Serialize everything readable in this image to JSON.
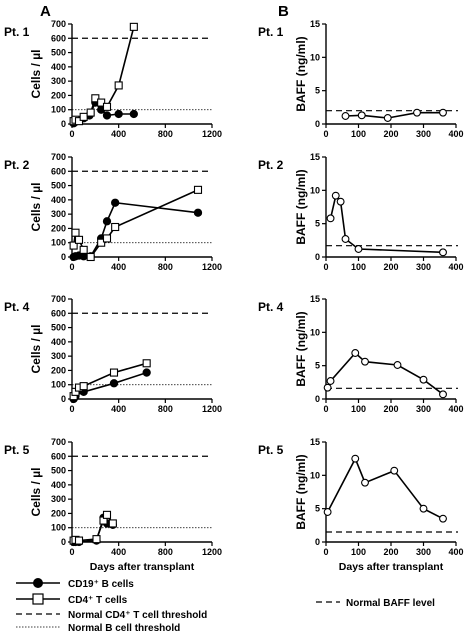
{
  "panel_letters": {
    "left": "A",
    "right": "B"
  },
  "patient_labels": [
    "Pt. 1",
    "Pt. 2",
    "Pt. 4",
    "Pt. 5"
  ],
  "left_ylabel": "Cells / µl",
  "right_ylabel": "BAFF (ng/ml)",
  "left_xlabel": "Days after transplant",
  "right_xlabel": "Days after transplant",
  "legend": {
    "b_cells": "CD19⁺ B cells",
    "t_cells": "CD4⁺ T cells",
    "cd4_threshold": "Normal CD4⁺ T cell threshold",
    "b_threshold": "Normal B cell threshold",
    "baff_level": "Normal BAFF level"
  },
  "chart_data": [
    {
      "type": "line",
      "panel": "A",
      "patient": "Pt. 1",
      "xlabel": "",
      "ylabel": "Cells / µl",
      "xlim": [
        0,
        1200
      ],
      "ylim": [
        0,
        700
      ],
      "xticks": [
        0,
        400,
        800,
        1200
      ],
      "yticks": [
        0,
        100,
        200,
        300,
        400,
        500,
        600,
        700
      ],
      "series": [
        {
          "name": "CD19⁺ B cells",
          "x": [
            14,
            30,
            60,
            100,
            150,
            200,
            250,
            300,
            400,
            530
          ],
          "y": [
            5,
            15,
            25,
            40,
            60,
            150,
            100,
            60,
            70,
            70
          ]
        },
        {
          "name": "CD4⁺ T cells",
          "x": [
            14,
            30,
            60,
            100,
            160,
            200,
            250,
            300,
            400,
            530
          ],
          "y": [
            20,
            30,
            20,
            50,
            80,
            180,
            150,
            120,
            270,
            680
          ]
        }
      ],
      "thresholds": [
        {
          "name": "Normal CD4⁺ T cell threshold",
          "y": 600
        },
        {
          "name": "Normal B cell threshold",
          "y": 100
        }
      ]
    },
    {
      "type": "line",
      "panel": "A",
      "patient": "Pt. 2",
      "xlabel": "",
      "ylabel": "Cells / µl",
      "xlim": [
        0,
        1200
      ],
      "ylim": [
        0,
        700
      ],
      "xticks": [
        0,
        400,
        800,
        1200
      ],
      "yticks": [
        0,
        100,
        200,
        300,
        400,
        500,
        600,
        700
      ],
      "series": [
        {
          "name": "CD19⁺ B cells",
          "x": [
            14,
            30,
            60,
            100,
            160,
            250,
            300,
            370,
            1080
          ],
          "y": [
            0,
            5,
            10,
            5,
            5,
            130,
            250,
            380,
            310
          ]
        },
        {
          "name": "CD4⁺ T cells",
          "x": [
            14,
            30,
            60,
            100,
            160,
            250,
            300,
            370,
            1080
          ],
          "y": [
            80,
            170,
            120,
            50,
            0,
            100,
            130,
            210,
            470
          ]
        }
      ],
      "thresholds": [
        {
          "name": "Normal CD4⁺ T cell threshold",
          "y": 600
        },
        {
          "name": "Normal B cell threshold",
          "y": 100
        }
      ]
    },
    {
      "type": "line",
      "panel": "A",
      "patient": "Pt. 4",
      "xlabel": "",
      "ylabel": "Cells / µl",
      "xlim": [
        0,
        1200
      ],
      "ylim": [
        0,
        700
      ],
      "xticks": [
        0,
        400,
        800,
        1200
      ],
      "yticks": [
        0,
        100,
        200,
        300,
        400,
        500,
        600,
        700
      ],
      "series": [
        {
          "name": "CD19⁺ B cells",
          "x": [
            14,
            30,
            60,
            100,
            360,
            640
          ],
          "y": [
            0,
            20,
            60,
            50,
            110,
            185
          ]
        },
        {
          "name": "CD4⁺ T cells",
          "x": [
            14,
            30,
            60,
            100,
            360,
            640
          ],
          "y": [
            20,
            50,
            80,
            90,
            185,
            250
          ]
        }
      ],
      "thresholds": [
        {
          "name": "Normal CD4⁺ T cell threshold",
          "y": 600
        },
        {
          "name": "Normal B cell threshold",
          "y": 100
        }
      ]
    },
    {
      "type": "line",
      "panel": "A",
      "patient": "Pt. 5",
      "xlabel": "Days after transplant",
      "ylabel": "Cells / µl",
      "xlim": [
        0,
        1200
      ],
      "ylim": [
        0,
        700
      ],
      "xticks": [
        0,
        400,
        800,
        1200
      ],
      "yticks": [
        0,
        100,
        200,
        300,
        400,
        500,
        600,
        700
      ],
      "series": [
        {
          "name": "CD19⁺ B cells",
          "x": [
            14,
            30,
            60,
            210,
            270,
            300,
            350
          ],
          "y": [
            0,
            0,
            0,
            10,
            170,
            130,
            120
          ]
        },
        {
          "name": "CD4⁺ T cells",
          "x": [
            14,
            30,
            60,
            210,
            270,
            300,
            350
          ],
          "y": [
            10,
            15,
            10,
            20,
            150,
            190,
            130
          ]
        }
      ],
      "thresholds": [
        {
          "name": "Normal CD4⁺ T cell threshold",
          "y": 600
        },
        {
          "name": "Normal B cell threshold",
          "y": 100
        }
      ]
    },
    {
      "type": "line",
      "panel": "B",
      "patient": "Pt. 1",
      "xlabel": "",
      "ylabel": "BAFF (ng/ml)",
      "xlim": [
        0,
        400
      ],
      "ylim": [
        0,
        15
      ],
      "xticks": [
        0,
        100,
        200,
        300,
        400
      ],
      "yticks": [
        0,
        5,
        10,
        15
      ],
      "series": [
        {
          "name": "BAFF",
          "x": [
            60,
            110,
            190,
            280,
            360
          ],
          "y": [
            1.2,
            1.3,
            0.9,
            1.7,
            1.7
          ]
        }
      ],
      "thresholds": [
        {
          "name": "Normal BAFF level",
          "y": 2.0
        }
      ]
    },
    {
      "type": "line",
      "panel": "B",
      "patient": "Pt. 2",
      "xlabel": "",
      "ylabel": "BAFF (ng/ml)",
      "xlim": [
        0,
        400
      ],
      "ylim": [
        0,
        15
      ],
      "xticks": [
        0,
        100,
        200,
        300,
        400
      ],
      "yticks": [
        0,
        5,
        10,
        15
      ],
      "series": [
        {
          "name": "BAFF",
          "x": [
            14,
            30,
            45,
            60,
            100,
            360
          ],
          "y": [
            5.8,
            9.2,
            8.3,
            2.7,
            1.2,
            0.7
          ]
        }
      ],
      "thresholds": [
        {
          "name": "Normal BAFF level",
          "y": 1.7
        }
      ]
    },
    {
      "type": "line",
      "panel": "B",
      "patient": "Pt. 4",
      "xlabel": "",
      "ylabel": "BAFF (ng/ml)",
      "xlim": [
        0,
        400
      ],
      "ylim": [
        0,
        15
      ],
      "xticks": [
        0,
        100,
        200,
        300,
        400
      ],
      "yticks": [
        0,
        5,
        10,
        15
      ],
      "series": [
        {
          "name": "BAFF",
          "x": [
            5,
            14,
            90,
            120,
            220,
            300,
            360
          ],
          "y": [
            1.7,
            2.7,
            6.9,
            5.6,
            5.1,
            2.9,
            0.7
          ]
        }
      ],
      "thresholds": [
        {
          "name": "Normal BAFF level",
          "y": 1.6
        }
      ]
    },
    {
      "type": "line",
      "panel": "B",
      "patient": "Pt. 5",
      "xlabel": "Days after transplant",
      "ylabel": "BAFF (ng/ml)",
      "xlim": [
        0,
        400
      ],
      "ylim": [
        0,
        15
      ],
      "xticks": [
        0,
        100,
        200,
        300,
        400
      ],
      "yticks": [
        0,
        5,
        10,
        15
      ],
      "series": [
        {
          "name": "BAFF",
          "x": [
            5,
            90,
            120,
            210,
            300,
            360
          ],
          "y": [
            4.5,
            12.5,
            8.9,
            10.7,
            5.0,
            3.5
          ]
        }
      ],
      "thresholds": [
        {
          "name": "Normal BAFF level",
          "y": 1.5
        }
      ]
    }
  ]
}
